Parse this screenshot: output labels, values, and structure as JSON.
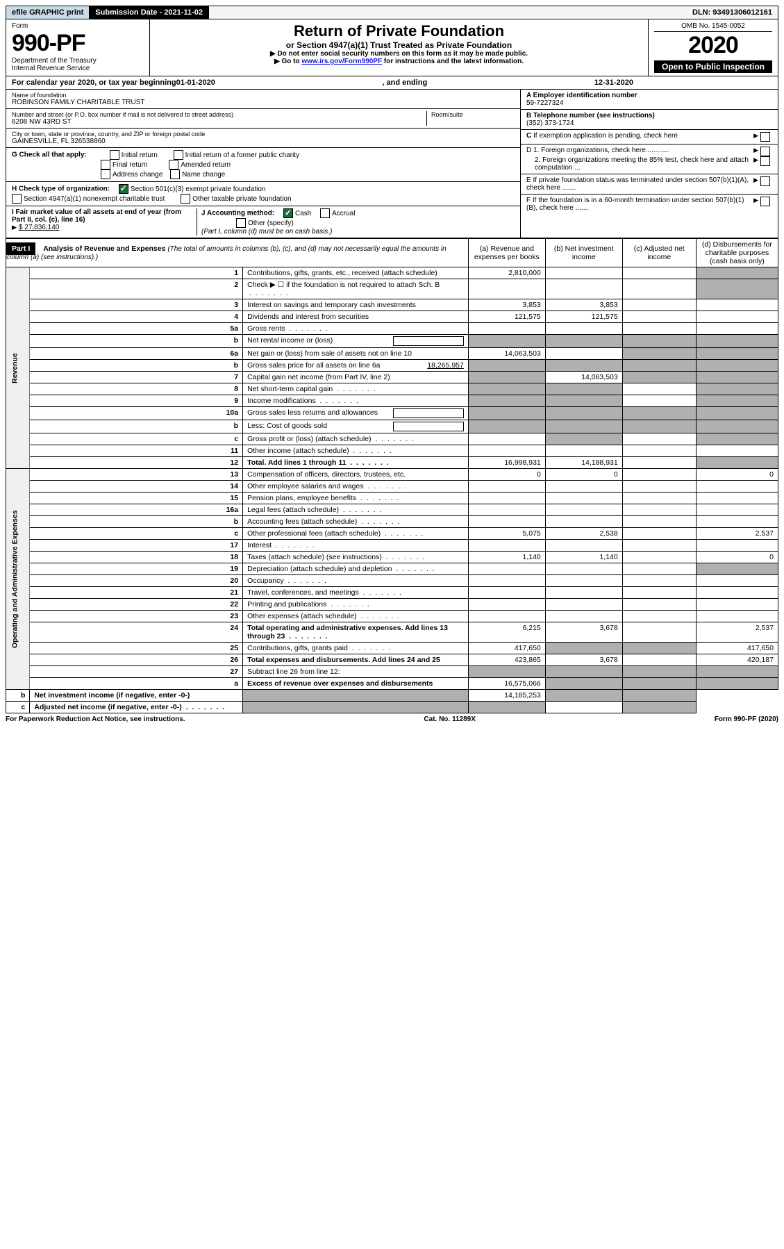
{
  "top": {
    "efile": "efile GRAPHIC print",
    "submission": "Submission Date - 2021-11-02",
    "dln": "DLN: 93491306012161"
  },
  "header": {
    "form": "Form",
    "form_no": "990-PF",
    "dept": "Department of the Treasury",
    "irs": "Internal Revenue Service",
    "title": "Return of Private Foundation",
    "subtitle": "or Section 4947(a)(1) Trust Treated as Private Foundation",
    "instr1": "▶ Do not enter social security numbers on this form as it may be made public.",
    "instr2": "▶ Go to ",
    "instr2_link": "www.irs.gov/Form990PF",
    "instr2_tail": " for instructions and the latest information.",
    "omb": "OMB No. 1545-0052",
    "year": "2020",
    "open": "Open to Public Inspection"
  },
  "calyear": {
    "prefix": "For calendar year 2020, or tax year beginning ",
    "begin": "01-01-2020",
    "mid": " , and ending ",
    "end": "12-31-2020"
  },
  "id": {
    "name_label": "Name of foundation",
    "name": "ROBINSON FAMILY CHARITABLE TRUST",
    "addr_label": "Number and street (or P.O. box number if mail is not delivered to street address)",
    "addr": "6208 NW 43RD ST",
    "room_label": "Room/suite",
    "city_label": "City or town, state or province, country, and ZIP or foreign postal code",
    "city": "GAINESVILLE, FL 326538860",
    "ein_label": "A Employer identification number",
    "ein": "59-7227324",
    "phone_label": "B Telephone number (see instructions)",
    "phone": "(352) 373-1724",
    "c_label": "C If exemption application is pending, check here",
    "d1": "D 1. Foreign organizations, check here............",
    "d2": "2. Foreign organizations meeting the 85% test, check here and attach computation ...",
    "e_label": "E If private foundation status was terminated under section 507(b)(1)(A), check here .......",
    "f_label": "F If the foundation is in a 60-month termination under section 507(b)(1)(B), check here .......",
    "g_label": "G Check all that apply:",
    "g_opts": [
      "Initial return",
      "Initial return of a former public charity",
      "Final return",
      "Amended return",
      "Address change",
      "Name change"
    ],
    "h_label": "H Check type of organization:",
    "h1": "Section 501(c)(3) exempt private foundation",
    "h2": "Section 4947(a)(1) nonexempt charitable trust",
    "h3": "Other taxable private foundation",
    "i_label": "I Fair market value of all assets at end of year (from Part II, col. (c), line 16)",
    "i_value": "$ 27,836,140",
    "j_label": "J Accounting method:",
    "j_cash": "Cash",
    "j_accrual": "Accrual",
    "j_other": "Other (specify)",
    "j_note": "(Part I, column (d) must be on cash basis.)"
  },
  "part1": {
    "label": "Part I",
    "title": "Analysis of Revenue and Expenses",
    "note": "(The total of amounts in columns (b), (c), and (d) may not necessarily equal the amounts in column (a) (see instructions).)",
    "cols": {
      "a": "(a) Revenue and expenses per books",
      "b": "(b) Net investment income",
      "c": "(c) Adjusted net income",
      "d": "(d) Disbursements for charitable purposes (cash basis only)"
    }
  },
  "sections": {
    "revenue": "Revenue",
    "expenses": "Operating and Administrative Expenses"
  },
  "rows": [
    {
      "n": "1",
      "desc": "Contributions, gifts, grants, etc., received (attach schedule)",
      "a": "2,810,000",
      "d_shade": true
    },
    {
      "n": "2",
      "desc": "Check ▶ ☐ if the foundation is not required to attach Sch. B",
      "dots": true,
      "a": "",
      "d_shade": true
    },
    {
      "n": "3",
      "desc": "Interest on savings and temporary cash investments",
      "a": "3,853",
      "b": "3,853"
    },
    {
      "n": "4",
      "desc": "Dividends and interest from securities",
      "a": "121,575",
      "b": "121,575"
    },
    {
      "n": "5a",
      "desc": "Gross rents",
      "dots": true
    },
    {
      "n": "b",
      "desc": "Net rental income or (loss)",
      "inline_box": true,
      "a_shade": true,
      "b_shade": true,
      "c_shade": true,
      "d_shade": true
    },
    {
      "n": "6a",
      "desc": "Net gain or (loss) from sale of assets not on line 10",
      "a": "14,063,503",
      "c_shade": true,
      "d_shade": true
    },
    {
      "n": "b",
      "desc": "Gross sales price for all assets on line 6a",
      "inline_val": "18,265,957",
      "a_shade": true,
      "b_shade": true,
      "c_shade": true,
      "d_shade": true
    },
    {
      "n": "7",
      "desc": "Capital gain net income (from Part IV, line 2)",
      "a_shade": true,
      "b": "14,063,503",
      "c_shade": true,
      "d_shade": true
    },
    {
      "n": "8",
      "desc": "Net short-term capital gain",
      "dots": true,
      "a_shade": true,
      "b_shade": true,
      "d_shade": true
    },
    {
      "n": "9",
      "desc": "Income modifications",
      "dots": true,
      "a_shade": true,
      "b_shade": true,
      "d_shade": true
    },
    {
      "n": "10a",
      "desc": "Gross sales less returns and allowances",
      "inline_box": true,
      "a_shade": true,
      "b_shade": true,
      "c_shade": true,
      "d_shade": true
    },
    {
      "n": "b",
      "desc": "Less: Cost of goods sold",
      "inline_box": true,
      "a_shade": true,
      "b_shade": true,
      "c_shade": true,
      "d_shade": true
    },
    {
      "n": "c",
      "desc": "Gross profit or (loss) (attach schedule)",
      "dots": true,
      "b_shade": true,
      "d_shade": true
    },
    {
      "n": "11",
      "desc": "Other income (attach schedule)",
      "dots": true
    },
    {
      "n": "12",
      "desc": "Total. Add lines 1 through 11",
      "bold": true,
      "dots": true,
      "a": "16,998,931",
      "b": "14,188,931",
      "d_shade": true
    },
    {
      "n": "13",
      "desc": "Compensation of officers, directors, trustees, etc.",
      "a": "0",
      "b": "0",
      "d": "0",
      "section": "exp"
    },
    {
      "n": "14",
      "desc": "Other employee salaries and wages",
      "dots": true
    },
    {
      "n": "15",
      "desc": "Pension plans, employee benefits",
      "dots": true
    },
    {
      "n": "16a",
      "desc": "Legal fees (attach schedule)",
      "dots": true
    },
    {
      "n": "b",
      "desc": "Accounting fees (attach schedule)",
      "dots": true
    },
    {
      "n": "c",
      "desc": "Other professional fees (attach schedule)",
      "dots": true,
      "a": "5,075",
      "b": "2,538",
      "d": "2,537"
    },
    {
      "n": "17",
      "desc": "Interest",
      "dots": true
    },
    {
      "n": "18",
      "desc": "Taxes (attach schedule) (see instructions)",
      "dots": true,
      "a": "1,140",
      "b": "1,140",
      "d": "0"
    },
    {
      "n": "19",
      "desc": "Depreciation (attach schedule) and depletion",
      "dots": true,
      "d_shade": true
    },
    {
      "n": "20",
      "desc": "Occupancy",
      "dots": true
    },
    {
      "n": "21",
      "desc": "Travel, conferences, and meetings",
      "dots": true
    },
    {
      "n": "22",
      "desc": "Printing and publications",
      "dots": true
    },
    {
      "n": "23",
      "desc": "Other expenses (attach schedule)",
      "dots": true
    },
    {
      "n": "24",
      "desc": "Total operating and administrative expenses. Add lines 13 through 23",
      "bold": true,
      "dots": true,
      "a": "6,215",
      "b": "3,678",
      "d": "2,537"
    },
    {
      "n": "25",
      "desc": "Contributions, gifts, grants paid",
      "dots": true,
      "a": "417,650",
      "b_shade": true,
      "c_shade": true,
      "d": "417,650"
    },
    {
      "n": "26",
      "desc": "Total expenses and disbursements. Add lines 24 and 25",
      "bold": true,
      "a": "423,865",
      "b": "3,678",
      "d": "420,187"
    },
    {
      "n": "27",
      "desc": "Subtract line 26 from line 12:",
      "a_shade": true,
      "b_shade": true,
      "c_shade": true,
      "d_shade": true,
      "section": "final"
    },
    {
      "n": "a",
      "desc": "Excess of revenue over expenses and disbursements",
      "bold": true,
      "a": "16,575,066",
      "b_shade": true,
      "c_shade": true,
      "d_shade": true
    },
    {
      "n": "b",
      "desc": "Net investment income (if negative, enter -0-)",
      "bold": true,
      "a_shade": true,
      "b": "14,185,253",
      "c_shade": true,
      "d_shade": true
    },
    {
      "n": "c",
      "desc": "Adjusted net income (if negative, enter -0-)",
      "bold": true,
      "dots": true,
      "a_shade": true,
      "b_shade": true,
      "d_shade": true
    }
  ],
  "footer": {
    "left": "For Paperwork Reduction Act Notice, see instructions.",
    "center": "Cat. No. 11289X",
    "right": "Form 990-PF (2020)"
  }
}
